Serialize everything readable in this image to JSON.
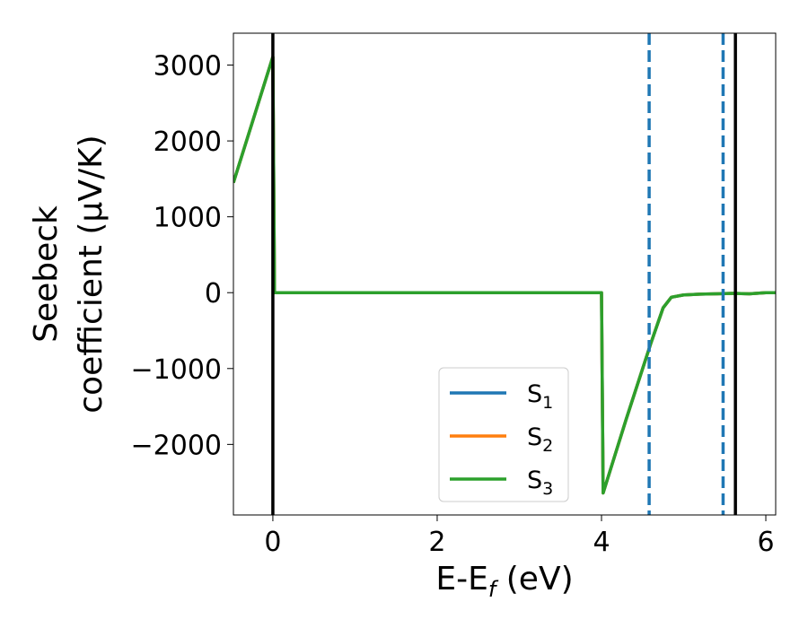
{
  "chart_data": {
    "type": "line",
    "title": "",
    "xlabel": "E-E_f (eV)",
    "ylabel": [
      "Seebeck",
      "coefficient  (μV/K)"
    ],
    "xlim": [
      -0.48,
      6.12
    ],
    "ylim": [
      -2930,
      3420
    ],
    "xticks": [
      0,
      2,
      4,
      6
    ],
    "yticks": [
      -2000,
      -1000,
      0,
      1000,
      2000,
      3000
    ],
    "grid": false,
    "legend_position": "lower-center-right",
    "series": [
      {
        "name": "S_1",
        "color": "#1f77b4",
        "x": [
          -0.48,
          0.0,
          0.02,
          4.0,
          4.02,
          4.3,
          4.6,
          4.75,
          4.85,
          5.0,
          5.2,
          5.4,
          5.6,
          5.8,
          6.0,
          6.12
        ],
        "y": [
          1450,
          3110,
          0,
          0,
          -2640,
          -1670,
          -670,
          -200,
          -60,
          -30,
          -20,
          -15,
          -10,
          -15,
          0,
          0
        ]
      },
      {
        "name": "S_2",
        "color": "#ff7f0e",
        "x": [
          -0.48,
          0.0,
          0.02,
          4.0,
          4.02,
          4.3,
          4.6,
          4.75,
          4.85,
          5.0,
          5.2,
          5.4,
          5.6,
          5.8,
          6.0,
          6.12
        ],
        "y": [
          1450,
          3110,
          0,
          0,
          -2640,
          -1670,
          -670,
          -200,
          -60,
          -30,
          -20,
          -15,
          -10,
          -15,
          0,
          0
        ]
      },
      {
        "name": "S_3",
        "color": "#2ca02c",
        "x": [
          -0.48,
          0.0,
          0.02,
          4.0,
          4.02,
          4.3,
          4.6,
          4.75,
          4.85,
          5.0,
          5.2,
          5.4,
          5.6,
          5.8,
          6.0,
          6.12
        ],
        "y": [
          1450,
          3110,
          0,
          0,
          -2640,
          -1670,
          -670,
          -200,
          -60,
          -30,
          -20,
          -15,
          -10,
          -15,
          0,
          0
        ]
      }
    ],
    "vlines": [
      {
        "x": 0.0,
        "style": "solid",
        "color": "#000000"
      },
      {
        "x": 5.63,
        "style": "solid",
        "color": "#000000"
      },
      {
        "x": 4.58,
        "style": "dashed",
        "color": "#1f77b4"
      },
      {
        "x": 5.48,
        "style": "dashed",
        "color": "#1f77b4"
      }
    ]
  }
}
